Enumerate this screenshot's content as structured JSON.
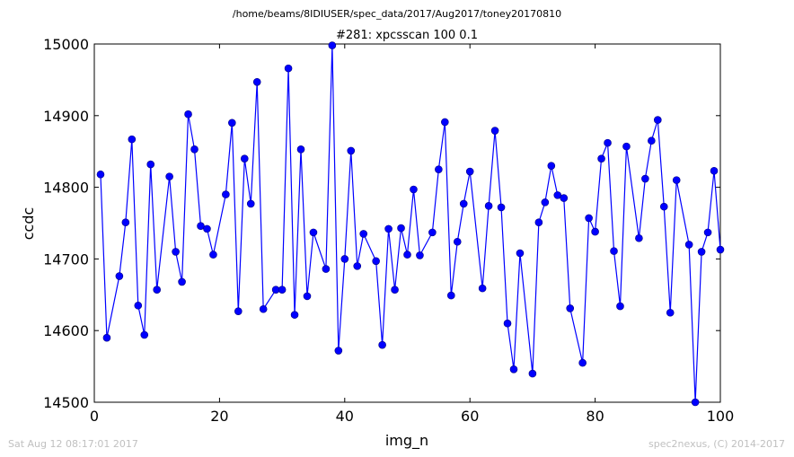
{
  "suptitle": "/home/beams/8IDIUSER/spec_data/2017/Aug2017/toney20170810",
  "footer_left": "Sat Aug 12 08:17:01 2017",
  "footer_right": "spec2nexus, (C) 2014-2017",
  "colors": {
    "series": "#0000ff",
    "marker_edge": "#000080",
    "footer": "#c0c0c0"
  },
  "chart_data": {
    "type": "line",
    "title": "#281: xpcsscan 100 0.1",
    "xlabel": "img_n",
    "ylabel": "ccdc",
    "xlim": [
      0,
      100
    ],
    "ylim": [
      14500,
      15000
    ],
    "xticks": [
      0,
      20,
      40,
      60,
      80,
      100
    ],
    "yticks": [
      14500,
      14600,
      14700,
      14800,
      14900,
      15000
    ],
    "grid": false,
    "series": [
      {
        "marker": "circle",
        "x": [
          1,
          2,
          4,
          5,
          6,
          7,
          8,
          9,
          10,
          12,
          13,
          14,
          15,
          16,
          17,
          18,
          19,
          21,
          22,
          23,
          24,
          25,
          26,
          27,
          29,
          30,
          31,
          32,
          33,
          34,
          35,
          37,
          38,
          39,
          40,
          41,
          42,
          43,
          45,
          46,
          47,
          48,
          49,
          50,
          51,
          52,
          54,
          55,
          56,
          57,
          58,
          59,
          60,
          62,
          63,
          64,
          65,
          66,
          67,
          68,
          70,
          71,
          72,
          73,
          74,
          75,
          76,
          78,
          79,
          80,
          81,
          82,
          83,
          84,
          85,
          87,
          88,
          89,
          90,
          91,
          92,
          93,
          95,
          96,
          97,
          98,
          99,
          100
        ],
        "y": [
          14818,
          14590,
          14676,
          14751,
          14867,
          14635,
          14594,
          14832,
          14657,
          14815,
          14710,
          14668,
          14902,
          14853,
          14746,
          14742,
          14706,
          14790,
          14890,
          14627,
          14840,
          14777,
          14947,
          14630,
          14657,
          14657,
          14966,
          14622,
          14853,
          14648,
          14737,
          14686,
          14998,
          14572,
          14700,
          14851,
          14690,
          14735,
          14697,
          14580,
          14742,
          14657,
          14743,
          14706,
          14797,
          14705,
          14737,
          14825,
          14891,
          14649,
          14724,
          14777,
          14822,
          14659,
          14774,
          14879,
          14772,
          14610,
          14546,
          14708,
          14540,
          14751,
          14779,
          14830,
          14789,
          14785,
          14631,
          14555,
          14757,
          14738,
          14840,
          14862,
          14711,
          14634,
          14857,
          14729,
          14812,
          14865,
          14894,
          14773,
          14625,
          14810,
          14720,
          14500,
          14710,
          14737,
          14823,
          14713
        ]
      }
    ]
  }
}
